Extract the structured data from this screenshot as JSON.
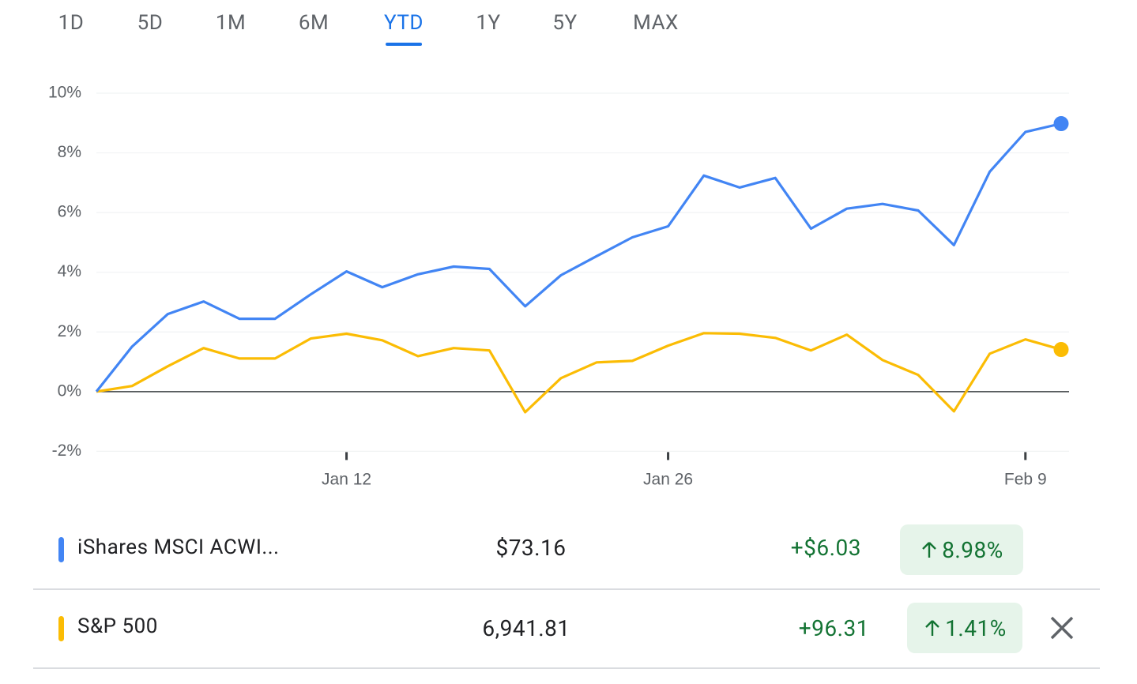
{
  "tabs": [
    "1D",
    "5D",
    "1M",
    "6M",
    "YTD",
    "1Y",
    "5Y",
    "MAX"
  ],
  "active_tab": 4,
  "chart_data": {
    "type": "line",
    "categories": [
      null,
      null,
      null,
      null,
      null,
      null,
      null,
      "Jan 12",
      null,
      null,
      null,
      null,
      null,
      null,
      null,
      null,
      "Jan 26",
      null,
      null,
      null,
      null,
      null,
      null,
      null,
      null,
      null,
      "Feb 9",
      null
    ],
    "series": [
      {
        "name": "iShares MSCI ACWI...",
        "color": "#4285f4",
        "values": [
          0,
          1.51,
          2.6,
          3.02,
          2.44,
          2.44,
          3.26,
          4.03,
          3.5,
          3.93,
          4.19,
          4.11,
          2.86,
          3.9,
          4.54,
          5.17,
          5.54,
          7.24,
          6.84,
          7.16,
          5.46,
          6.13,
          6.29,
          6.07,
          4.91,
          7.37,
          8.7,
          8.98
        ]
      },
      {
        "name": "S&P 500",
        "color": "#fbbc04",
        "values": [
          0,
          0.19,
          0.85,
          1.46,
          1.11,
          1.11,
          1.78,
          1.94,
          1.72,
          1.19,
          1.46,
          1.38,
          -0.69,
          0.45,
          0.98,
          1.03,
          1.54,
          1.96,
          1.94,
          1.8,
          1.38,
          1.91,
          1.06,
          0.56,
          -0.66,
          1.27,
          1.75,
          1.41
        ]
      }
    ],
    "ylim": [
      -2,
      10
    ],
    "yticks": [
      {
        "value": -2,
        "label": "-2%"
      },
      {
        "value": 0,
        "label": "0%"
      },
      {
        "value": 2,
        "label": "2%"
      },
      {
        "value": 4,
        "label": "4%"
      },
      {
        "value": 6,
        "label": "6%"
      },
      {
        "value": 8,
        "label": "8%"
      },
      {
        "value": 10,
        "label": "10%"
      }
    ],
    "grid": true
  },
  "rows": [
    {
      "price": "$73.16",
      "change": "+$6.03",
      "percent": "8.98%"
    },
    {
      "price": "6,941.81",
      "change": "+96.31",
      "percent": "1.41%"
    }
  ]
}
